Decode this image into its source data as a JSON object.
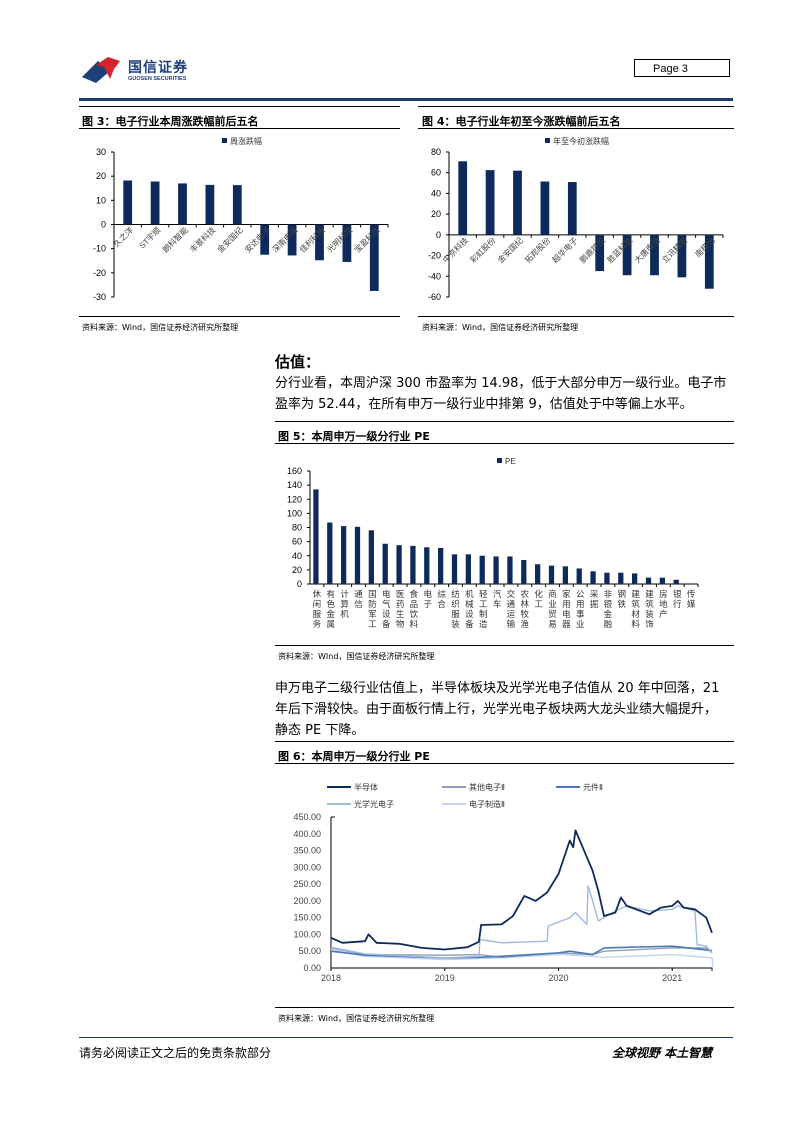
{
  "header": {
    "logo_cn": "国信证券",
    "logo_en": "GUOSEN SECURITIES",
    "page_label": "Page  3"
  },
  "figures": {
    "fig3": {
      "title": "图 3：电子行业本周涨跌幅前后五名",
      "source": "资料来源：Wind，国信证券经济研究所整理"
    },
    "fig4": {
      "title": "图 4：电子行业年初至今涨跌幅前后五名",
      "source": "资料来源：Wind，国信证券经济研究所整理"
    },
    "fig5": {
      "title": "图 5：本周申万一级分行业 PE",
      "source": "资料来源：WInd，国信证券经济研究所整理"
    },
    "fig6": {
      "title": "图 6：本周申万一级分行业 PE",
      "source": "资料来源：Wind，国信证券经济研究所整理"
    }
  },
  "section": {
    "heading": "估值：",
    "para1_line1": "分行业看，本周沪深 300 市盈率为 14.98，低于大部分申万一级行业。电子市",
    "para1_line2": "盈率为 52.44，在所有申万一级行业中排第 9，估值处于中等偏上水平。",
    "para2_line1": "申万电子二级行业估值上，半导体板块及光学光电子估值从 20 年中回落，21",
    "para2_line2": "年后下滑较快。由于面板行情上行，光学光电子板块两大龙头业绩大幅提升，",
    "para2_line3": "静态 PE 下降。"
  },
  "footer": {
    "disclaimer": "请务必阅读正文之后的免责条款部分",
    "slogan": "全球视野  本土智慧"
  },
  "colors": {
    "bar": "#0d2a5a",
    "header_rule": "#1e3a6e",
    "semis": "#0d2a5a",
    "other_elec": "#8f9fb5",
    "components": "#4a78b8",
    "optoelec": "#9dbbe0",
    "elec_mfg": "#c3d5ec"
  },
  "chart_data": [
    {
      "type": "bar",
      "title": "电子行业本周涨跌幅前后五名",
      "legend": [
        "周涨跌幅"
      ],
      "categories": [
        "久之洋",
        "ST宇顺",
        "朗科智能",
        "丰景科技",
        "金安国纪",
        "安达电子",
        "深南电路",
        "佳利科技",
        "光明科技",
        "宝盈科技"
      ],
      "values": [
        18.2,
        17.8,
        17.0,
        16.4,
        16.3,
        -12.5,
        -12.8,
        -14.8,
        -15.5,
        -27.5
      ],
      "ylim": [
        -30,
        30
      ],
      "yticks": [
        30,
        20,
        10,
        0,
        -10,
        -20,
        -30
      ]
    },
    {
      "type": "bar",
      "title": "电子行业年初至今涨跌幅前后五名",
      "legend": [
        "年至今初涨跌幅"
      ],
      "categories": [
        "中京科技",
        "彩虹股份",
        "金安国纪",
        "拓邦股份",
        "超华电子",
        "鹏鼎控股",
        "胜蓝科技",
        "大唐电信",
        "立讯精密",
        "南极光"
      ],
      "values": [
        71,
        62.5,
        62,
        51.5,
        51,
        -35,
        -39,
        -39,
        -41,
        -52
      ],
      "ylim": [
        -60,
        80
      ],
      "yticks": [
        80,
        60,
        40,
        20,
        0,
        -20,
        -40,
        -60
      ]
    },
    {
      "type": "bar",
      "title": "本周申万一级分行业 PE",
      "legend": [
        "PE"
      ],
      "categories": [
        "休闲服务",
        "有色金属",
        "计算机",
        "通信",
        "国防军工",
        "电气设备",
        "医药生物",
        "食品饮料",
        "电子",
        "综合",
        "纺织服装",
        "机械设备",
        "轻工制造",
        "汽车",
        "交通运输",
        "农林牧渔",
        "化工",
        "商业贸易",
        "家用电器",
        "公用事业",
        "采掘",
        "非银金融",
        "钢铁",
        "建筑材料",
        "建筑装饰",
        "房地产",
        "银行",
        "传媒"
      ],
      "values": [
        134,
        87,
        82,
        81,
        76,
        57,
        55,
        54,
        52,
        51,
        42,
        42,
        40,
        39,
        39,
        34,
        28,
        26,
        25,
        22,
        18,
        16,
        16,
        15,
        9,
        9,
        6,
        0
      ],
      "ylim": [
        0,
        160
      ],
      "yticks": [
        160,
        140,
        120,
        100,
        80,
        60,
        40,
        20,
        0
      ]
    },
    {
      "type": "line",
      "title": "本周申万一级分行业 PE",
      "x": [
        "2018",
        "2019",
        "2020",
        "2021"
      ],
      "ylim": [
        0,
        450
      ],
      "yticks": [
        "450.00",
        "400.00",
        "350.00",
        "300.00",
        "250.00",
        "200.00",
        "150.00",
        "100.00",
        "50.00",
        "0.00"
      ],
      "series": [
        {
          "name": "半导体",
          "values": [
            [
              2018.0,
              90
            ],
            [
              2018.1,
              75
            ],
            [
              2018.3,
              80
            ],
            [
              2018.33,
              100
            ],
            [
              2018.4,
              75
            ],
            [
              2018.6,
              72
            ],
            [
              2018.8,
              60
            ],
            [
              2019.0,
              55
            ],
            [
              2019.2,
              62
            ],
            [
              2019.3,
              78
            ],
            [
              2019.32,
              128
            ],
            [
              2019.5,
              130
            ],
            [
              2019.6,
              155
            ],
            [
              2019.7,
              215
            ],
            [
              2019.8,
              200
            ],
            [
              2019.9,
              225
            ],
            [
              2020.0,
              280
            ],
            [
              2020.1,
              380
            ],
            [
              2020.13,
              360
            ],
            [
              2020.15,
              410
            ],
            [
              2020.2,
              370
            ],
            [
              2020.3,
              290
            ],
            [
              2020.35,
              230
            ],
            [
              2020.4,
              155
            ],
            [
              2020.5,
              165
            ],
            [
              2020.55,
              210
            ],
            [
              2020.6,
              185
            ],
            [
              2020.8,
              160
            ],
            [
              2020.9,
              180
            ],
            [
              2021.0,
              185
            ],
            [
              2021.05,
              200
            ],
            [
              2021.1,
              180
            ],
            [
              2021.2,
              175
            ],
            [
              2021.3,
              150
            ],
            [
              2021.35,
              105
            ]
          ]
        },
        {
          "name": "其他电子Ⅱ",
          "values": [
            [
              2018.0,
              60
            ],
            [
              2018.3,
              40
            ],
            [
              2019.0,
              38
            ],
            [
              2019.3,
              40
            ],
            [
              2019.5,
              32
            ],
            [
              2020.0,
              45
            ],
            [
              2020.3,
              40
            ],
            [
              2020.4,
              50
            ],
            [
              2021.0,
              60
            ],
            [
              2021.3,
              60
            ],
            [
              2021.35,
              45
            ]
          ]
        },
        {
          "name": "元件Ⅱ",
          "values": [
            [
              2018.0,
              50
            ],
            [
              2018.3,
              38
            ],
            [
              2019.0,
              30
            ],
            [
              2019.3,
              32
            ],
            [
              2019.5,
              35
            ],
            [
              2020.0,
              45
            ],
            [
              2020.1,
              50
            ],
            [
              2020.3,
              40
            ],
            [
              2020.4,
              60
            ],
            [
              2021.0,
              65
            ],
            [
              2021.35,
              52
            ]
          ]
        },
        {
          "name": "光学光电子",
          "values": [
            [
              2018.0,
              62
            ],
            [
              2018.3,
              42
            ],
            [
              2019.0,
              30
            ],
            [
              2019.3,
              35
            ],
            [
              2019.31,
              85
            ],
            [
              2019.5,
              75
            ],
            [
              2019.9,
              80
            ],
            [
              2019.91,
              125
            ],
            [
              2020.1,
              150
            ],
            [
              2020.15,
              165
            ],
            [
              2020.25,
              130
            ],
            [
              2020.26,
              245
            ],
            [
              2020.3,
              200
            ],
            [
              2020.35,
              140
            ],
            [
              2020.5,
              170
            ],
            [
              2020.6,
              185
            ],
            [
              2020.8,
              170
            ],
            [
              2021.0,
              175
            ],
            [
              2021.05,
              185
            ],
            [
              2021.2,
              170
            ],
            [
              2021.22,
              70
            ],
            [
              2021.3,
              65
            ],
            [
              2021.35,
              45
            ]
          ]
        },
        {
          "name": "电子制造Ⅱ",
          "values": [
            [
              2018.0,
              55
            ],
            [
              2018.3,
              35
            ],
            [
              2019.0,
              25
            ],
            [
              2019.3,
              28
            ],
            [
              2019.5,
              30
            ],
            [
              2020.0,
              40
            ],
            [
              2020.3,
              35
            ],
            [
              2020.4,
              32
            ],
            [
              2021.0,
              40
            ],
            [
              2021.35,
              30
            ],
            [
              2021.36,
              0
            ]
          ]
        }
      ]
    }
  ]
}
